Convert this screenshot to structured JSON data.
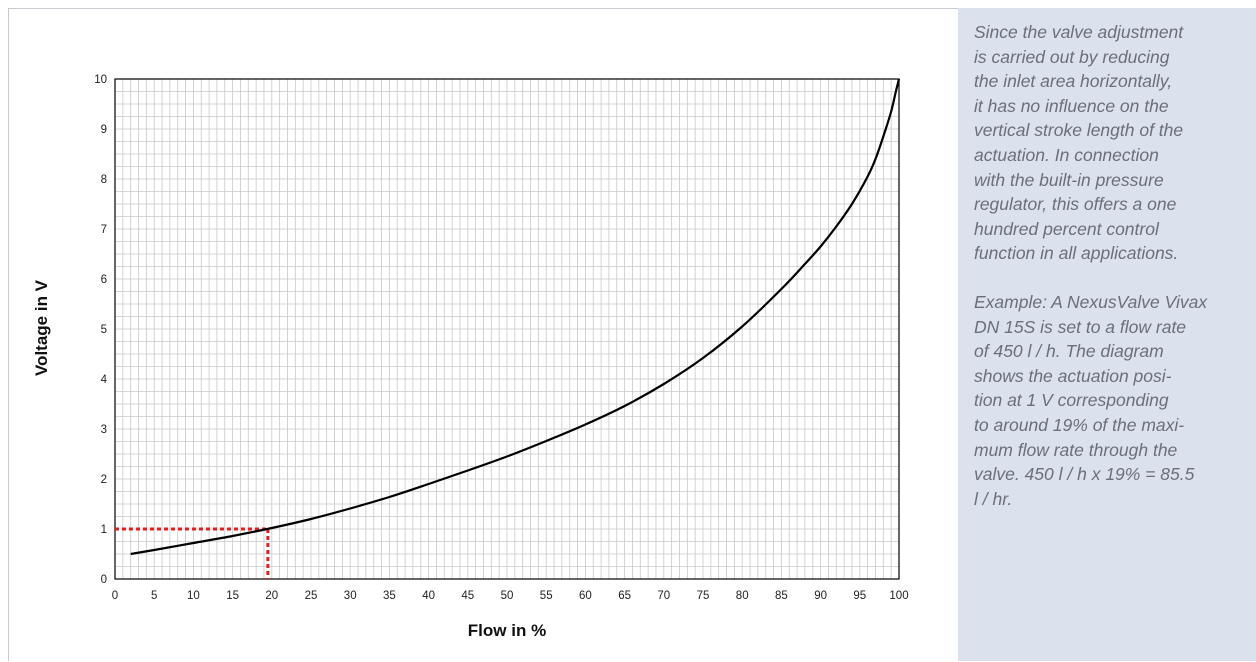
{
  "colors": {
    "grid": "#c8c8c8",
    "axis": "#000000",
    "curve": "#000000",
    "marker": "#e02020",
    "sidebar_bg": "#dbe2ee",
    "sidebar_text": "#6a6f78"
  },
  "sidebar": {
    "paragraph_1": "Since the valve adjustment\nis carried out by reducing\nthe inlet area horizontally,\nit has no influence on the\nvertical stroke length of the\nactuation. In connection\nwith the built-in pressure\nregulator, this offers a one\nhundred percent control\nfunction in all applications.",
    "paragraph_2": "Example: A NexusValve Vivax\nDN 15S is set to a flow rate\nof 450 l / h. The diagram\nshows the actuation posi-\ntion at 1 V corresponding\nto around 19% of the maxi-\nmum flow rate through the\nvalve. 450 l / h x 19% = 85.5\nl / hr."
  },
  "chart_data": {
    "type": "line",
    "title": "",
    "xlabel": "Flow in %",
    "ylabel": "Voltage in V",
    "xlim": [
      0,
      100
    ],
    "ylim": [
      0,
      10
    ],
    "x_ticks": [
      "0",
      "5",
      "10",
      "15",
      "20",
      "25",
      "30",
      "35",
      "40",
      "45",
      "50",
      "55",
      "60",
      "65",
      "70",
      "75",
      "80",
      "85",
      "90",
      "95",
      "100"
    ],
    "y_ticks": [
      "0",
      "1",
      "2",
      "3",
      "4",
      "5",
      "6",
      "7",
      "8",
      "9",
      "10"
    ],
    "grid": true,
    "minor_grid_x_step": 1,
    "minor_grid_y_step": 0.25,
    "series": [
      {
        "points": [
          [
            2,
            0.5
          ],
          [
            5,
            0.58
          ],
          [
            10,
            0.72
          ],
          [
            15,
            0.86
          ],
          [
            20,
            1.02
          ],
          [
            25,
            1.2
          ],
          [
            30,
            1.41
          ],
          [
            35,
            1.64
          ],
          [
            40,
            1.9
          ],
          [
            45,
            2.17
          ],
          [
            50,
            2.45
          ],
          [
            55,
            2.76
          ],
          [
            60,
            3.09
          ],
          [
            65,
            3.46
          ],
          [
            70,
            3.9
          ],
          [
            75,
            4.42
          ],
          [
            80,
            5.05
          ],
          [
            85,
            5.8
          ],
          [
            88,
            6.3
          ],
          [
            90,
            6.65
          ],
          [
            92,
            7.05
          ],
          [
            94,
            7.5
          ],
          [
            96,
            8.05
          ],
          [
            97,
            8.4
          ],
          [
            98,
            8.85
          ],
          [
            99,
            9.35
          ],
          [
            99.6,
            9.75
          ],
          [
            100,
            10.0
          ]
        ]
      }
    ],
    "annotations": [
      {
        "type": "marker-lines",
        "x": 19.5,
        "y": 1.0
      }
    ]
  }
}
